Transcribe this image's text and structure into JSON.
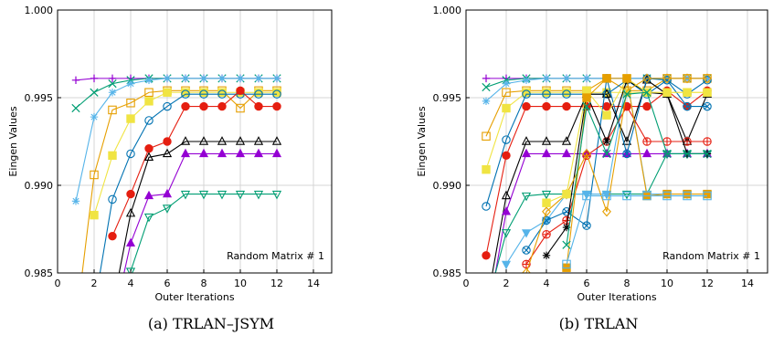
{
  "chart_data": [
    {
      "type": "line",
      "caption": "(a) TRLAN–JSYM",
      "xlabel": "Outer Iterations",
      "ylabel": "Eingen Values",
      "annotation": "Random Matrix # 1",
      "xlim": [
        0,
        15
      ],
      "ylim": [
        0.985,
        1.0
      ],
      "xticks": [
        0,
        2,
        4,
        6,
        8,
        10,
        12,
        14
      ],
      "yticks": [
        "0.985",
        "0.990",
        "0.995",
        "1.000"
      ],
      "grid": true,
      "legend": "none",
      "series": [
        {
          "color": "#9400d3",
          "marker": "plus",
          "x": [
            1,
            2,
            3,
            4,
            5,
            6,
            7,
            8,
            9,
            10,
            11,
            12
          ],
          "y": [
            0.996,
            0.9961,
            0.9961,
            0.9961,
            0.9961,
            0.9961,
            0.9961,
            0.9961,
            0.9961,
            0.9961,
            0.9961,
            0.9961
          ]
        },
        {
          "color": "#009e73",
          "marker": "x",
          "x": [
            1,
            2,
            3,
            4,
            5,
            6,
            7,
            8,
            9,
            10,
            11,
            12
          ],
          "y": [
            0.9944,
            0.9953,
            0.9958,
            0.996,
            0.9961,
            0.9961,
            0.9961,
            0.9961,
            0.9961,
            0.9961,
            0.9961,
            0.9961
          ]
        },
        {
          "color": "#56b4e9",
          "marker": "star",
          "x": [
            1,
            2,
            3,
            4,
            5,
            6,
            7,
            8,
            9,
            10,
            11,
            12
          ],
          "y": [
            0.9891,
            0.9939,
            0.9953,
            0.9958,
            0.996,
            0.9961,
            0.9961,
            0.9961,
            0.9961,
            0.9961,
            0.9961,
            0.9961
          ]
        },
        {
          "color": "#e69f00",
          "marker": "square-open",
          "x": [
            1,
            2,
            3,
            4,
            5,
            6,
            7,
            8,
            9,
            10,
            11,
            12
          ],
          "y": [
            0.982,
            0.9906,
            0.9943,
            0.9947,
            0.9953,
            0.9954,
            0.9954,
            0.9954,
            0.9954,
            0.9944,
            0.9954,
            0.9954
          ]
        },
        {
          "color": "#f0e442",
          "marker": "square-filled",
          "x": [
            2,
            3,
            4,
            5,
            6,
            7,
            8,
            9,
            10,
            11,
            12
          ],
          "y": [
            0.9883,
            0.9917,
            0.9938,
            0.9948,
            0.9953,
            0.9953,
            0.9953,
            0.9953,
            0.9953,
            0.9953,
            0.9953
          ]
        },
        {
          "color": "#0072b2",
          "marker": "circle-open",
          "x": [
            2,
            3,
            4,
            5,
            6,
            7,
            8,
            9,
            10,
            11,
            12
          ],
          "y": [
            0.983,
            0.9892,
            0.9918,
            0.9937,
            0.9945,
            0.9952,
            0.9952,
            0.9952,
            0.9952,
            0.9952,
            0.9952
          ]
        },
        {
          "color": "#e51e10",
          "marker": "circle-filled",
          "x": [
            3,
            4,
            5,
            6,
            7,
            8,
            9,
            10,
            11,
            12
          ],
          "y": [
            0.9871,
            0.9895,
            0.9921,
            0.9925,
            0.9945,
            0.9945,
            0.9945,
            0.9954,
            0.9945,
            0.9945
          ]
        },
        {
          "color": "#000000",
          "marker": "triangle-open",
          "x": [
            3,
            4,
            5,
            6,
            7,
            8,
            9,
            10,
            11,
            12
          ],
          "y": [
            0.983,
            0.9884,
            0.9916,
            0.9918,
            0.9925,
            0.9925,
            0.9925,
            0.9925,
            0.9925,
            0.9925
          ]
        },
        {
          "color": "#9400d3",
          "marker": "triangle-filled",
          "x": [
            3,
            4,
            5,
            6,
            7,
            8,
            9,
            10,
            11,
            12
          ],
          "y": [
            0.982,
            0.9867,
            0.9894,
            0.9895,
            0.9918,
            0.9918,
            0.9918,
            0.9918,
            0.9918,
            0.9918
          ]
        },
        {
          "color": "#009e73",
          "marker": "triangle-down-open",
          "x": [
            4,
            5,
            6,
            7,
            8,
            9,
            10,
            11,
            12
          ],
          "y": [
            0.9851,
            0.9882,
            0.9887,
            0.9895,
            0.9895,
            0.9895,
            0.9895,
            0.9895,
            0.9895
          ]
        }
      ]
    },
    {
      "type": "line",
      "caption": "(b) TRLAN",
      "xlabel": "Outer Iterations",
      "ylabel": "Eingen Values",
      "annotation": "Random Matrix # 1",
      "xlim": [
        0,
        15
      ],
      "ylim": [
        0.985,
        1.0
      ],
      "xticks": [
        0,
        2,
        4,
        6,
        8,
        10,
        12,
        14
      ],
      "yticks": [
        "0.985",
        "0.990",
        "0.995",
        "1.000"
      ],
      "grid": true,
      "legend": "none",
      "series": [
        {
          "color": "#9400d3",
          "marker": "plus",
          "x": [
            1,
            2,
            3,
            4,
            5,
            6,
            7,
            8,
            9,
            10,
            11,
            12
          ],
          "y": [
            0.9961,
            0.9961,
            0.9961,
            0.9961,
            0.9961,
            0.9961,
            0.9961,
            0.9961,
            0.9961,
            0.9961,
            0.9961,
            0.9961
          ]
        },
        {
          "color": "#009e73",
          "marker": "x",
          "x": [
            1,
            2,
            3,
            4,
            5,
            6,
            7,
            8,
            9,
            10,
            11,
            12
          ],
          "y": [
            0.9956,
            0.996,
            0.9961,
            0.9961,
            0.9961,
            0.9961,
            0.9961,
            0.9961,
            0.9961,
            0.9961,
            0.9961,
            0.9961
          ]
        },
        {
          "color": "#56b4e9",
          "marker": "star",
          "x": [
            1,
            2,
            3,
            4,
            5,
            6,
            7,
            8,
            9,
            10,
            11,
            12
          ],
          "y": [
            0.9948,
            0.9958,
            0.996,
            0.9961,
            0.9961,
            0.9961,
            0.9961,
            0.9961,
            0.9961,
            0.9961,
            0.9961,
            0.9961
          ]
        },
        {
          "color": "#e69f00",
          "marker": "square-open",
          "x": [
            1,
            2,
            3,
            4,
            5,
            6,
            7,
            8,
            9,
            10,
            11,
            12
          ],
          "y": [
            0.9928,
            0.9953,
            0.9954,
            0.9954,
            0.9954,
            0.9954,
            0.9961,
            0.9954,
            0.9954,
            0.9961,
            0.9961,
            0.9961
          ]
        },
        {
          "color": "#f0e442",
          "marker": "square-filled",
          "x": [
            1,
            2,
            3,
            4,
            5,
            6,
            7,
            8,
            9,
            10,
            11,
            12
          ],
          "y": [
            0.9909,
            0.9944,
            0.9953,
            0.9953,
            0.9953,
            0.9953,
            0.9953,
            0.9953,
            0.9953,
            0.9953,
            0.9953,
            0.9953
          ]
        },
        {
          "color": "#0072b2",
          "marker": "circle-open",
          "x": [
            1,
            2,
            3,
            4,
            5,
            6,
            7,
            8,
            9,
            10,
            11,
            12
          ],
          "y": [
            0.9888,
            0.9926,
            0.9952,
            0.9952,
            0.9952,
            0.9952,
            0.9952,
            0.996,
            0.9952,
            0.996,
            0.9952,
            0.996
          ]
        },
        {
          "color": "#e51e10",
          "marker": "circle-filled",
          "x": [
            1,
            2,
            3,
            4,
            5,
            6,
            7,
            8,
            9,
            10,
            11,
            12
          ],
          "y": [
            0.986,
            0.9917,
            0.9945,
            0.9945,
            0.9945,
            0.9945,
            0.9945,
            0.9945,
            0.9945,
            0.9954,
            0.9945,
            0.9954
          ]
        },
        {
          "color": "#000000",
          "marker": "triangle-open",
          "x": [
            1,
            2,
            3,
            4,
            5,
            6,
            7,
            8,
            9,
            10,
            11,
            12
          ],
          "y": [
            0.983,
            0.9894,
            0.9925,
            0.9925,
            0.9925,
            0.9952,
            0.9952,
            0.9925,
            0.996,
            0.9952,
            0.9925,
            0.9952
          ]
        },
        {
          "color": "#9400d3",
          "marker": "triangle-filled",
          "x": [
            1,
            2,
            3,
            4,
            5,
            6,
            7,
            8,
            9,
            10,
            11,
            12
          ],
          "y": [
            0.982,
            0.9885,
            0.9918,
            0.9918,
            0.9918,
            0.9918,
            0.9918,
            0.9918,
            0.9918,
            0.9918,
            0.9918,
            0.9918
          ]
        },
        {
          "color": "#009e73",
          "marker": "triangle-down-open",
          "x": [
            1,
            2,
            3,
            4,
            5,
            6,
            7,
            8,
            9,
            10,
            11,
            12
          ],
          "y": [
            0.983,
            0.9873,
            0.9894,
            0.9895,
            0.9895,
            0.9895,
            0.9895,
            0.9895,
            0.9895,
            0.9918,
            0.9918,
            0.9918
          ]
        },
        {
          "color": "#56b4e9",
          "marker": "triangle-down-filled",
          "x": [
            2,
            3,
            4,
            5,
            6,
            7,
            8,
            9,
            10,
            11,
            12
          ],
          "y": [
            0.9855,
            0.9873,
            0.988,
            0.9895,
            0.9895,
            0.9895,
            0.9961,
            0.9895,
            0.9895,
            0.9895,
            0.9895
          ]
        },
        {
          "color": "#0072b2",
          "marker": "circle-x",
          "x": [
            3,
            4,
            5,
            6,
            7,
            8,
            9,
            10,
            11,
            12
          ],
          "y": [
            0.9863,
            0.988,
            0.9885,
            0.9877,
            0.9961,
            0.9918,
            0.9961,
            0.996,
            0.9945,
            0.9945
          ]
        },
        {
          "color": "#e51e10",
          "marker": "circle-plus",
          "x": [
            3,
            4,
            5,
            6,
            7,
            8,
            9,
            10,
            11,
            12
          ],
          "y": [
            0.9855,
            0.9872,
            0.988,
            0.9917,
            0.9925,
            0.9945,
            0.9925,
            0.9925,
            0.9925,
            0.9925
          ]
        },
        {
          "color": "#000000",
          "marker": "star",
          "x": [
            4,
            5,
            6,
            7,
            8,
            9,
            10,
            11,
            12
          ],
          "y": [
            0.986,
            0.9876,
            0.9952,
            0.9925,
            0.996,
            0.9953,
            0.9952,
            0.9918,
            0.9918
          ]
        },
        {
          "color": "#e69f00",
          "marker": "diamond-open",
          "x": [
            3,
            4,
            5,
            6,
            7,
            8,
            9,
            10,
            11,
            12
          ],
          "y": [
            0.985,
            0.9885,
            0.9895,
            0.9918,
            0.9885,
            0.9954,
            0.9961,
            0.9961,
            0.9961,
            0.9961
          ]
        },
        {
          "color": "#f0e442",
          "marker": "square-filled",
          "x": [
            4,
            5,
            6,
            7,
            8,
            9,
            10,
            11,
            12
          ],
          "y": [
            0.989,
            0.9895,
            0.9954,
            0.994,
            0.9961,
            0.9953,
            0.9953,
            0.9953,
            0.9953
          ]
        },
        {
          "color": "#e69f00",
          "marker": "square-filled",
          "x": [
            5,
            6,
            7,
            8,
            9,
            10,
            11,
            12
          ],
          "y": [
            0.9853,
            0.995,
            0.9961,
            0.9961,
            0.9894,
            0.9895,
            0.9895,
            0.9895
          ]
        },
        {
          "color": "#009e73",
          "marker": "x",
          "x": [
            5,
            6,
            7,
            8,
            9,
            10,
            11,
            12
          ],
          "y": [
            0.9866,
            0.9945,
            0.9918,
            0.9952,
            0.9953,
            0.9918,
            0.9918,
            0.9918
          ]
        },
        {
          "color": "#56b4e9",
          "marker": "square-open",
          "x": [
            5,
            6,
            7,
            8,
            9,
            10,
            11,
            12
          ],
          "y": [
            0.9855,
            0.9894,
            0.9894,
            0.9894,
            0.9894,
            0.9894,
            0.9894,
            0.9894
          ]
        }
      ]
    }
  ]
}
